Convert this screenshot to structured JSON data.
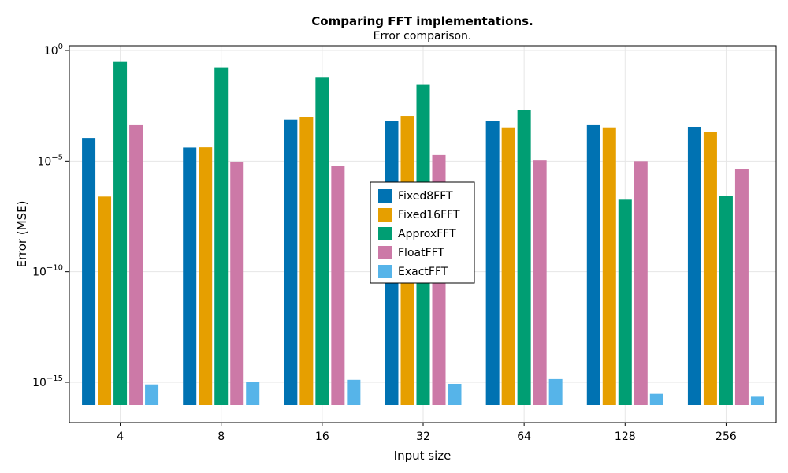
{
  "chart_data": {
    "type": "bar",
    "title": "Comparing FFT implementations.",
    "subtitle": "Error comparison.",
    "xlabel": "Input size",
    "ylabel": "Error (MSE)",
    "yscale": "log",
    "ylim": [
      1e-16,
      3.0
    ],
    "yticks": [
      {
        "value": 1,
        "base": "10",
        "exp": "0"
      },
      {
        "value": 1e-05,
        "base": "10",
        "exp": "−5"
      },
      {
        "value": 1e-10,
        "base": "10",
        "exp": "−10"
      },
      {
        "value": 1e-15,
        "base": "10",
        "exp": "−15"
      }
    ],
    "grid": true,
    "legend_position": "center",
    "categories": [
      "4",
      "8",
      "16",
      "32",
      "64",
      "128",
      "256"
    ],
    "series": [
      {
        "name": "Fixed8FFT",
        "color": "#0072B2",
        "values": [
          0.00011,
          4e-05,
          0.00075,
          0.00065,
          0.00065,
          0.00045,
          0.00035
        ]
      },
      {
        "name": "Fixed16FFT",
        "color": "#E69F00",
        "values": [
          2.5e-07,
          4.1e-05,
          0.001,
          0.0011,
          0.00033,
          0.00033,
          0.0002
        ]
      },
      {
        "name": "ApproxFFT",
        "color": "#009E73",
        "values": [
          0.3,
          0.17,
          0.06,
          0.028,
          0.0021,
          1.8e-07,
          2.7e-07
        ]
      },
      {
        "name": "FloatFFT",
        "color": "#CC79A7",
        "values": [
          0.00045,
          9.5e-06,
          6e-06,
          2e-05,
          1.1e-05,
          1e-05,
          4.5e-06
        ]
      },
      {
        "name": "ExactFFT",
        "color": "#56B4E9",
        "values": [
          8e-16,
          1e-15,
          1.3e-15,
          8.5e-16,
          1.4e-15,
          3e-16,
          2.4e-16
        ]
      }
    ]
  }
}
